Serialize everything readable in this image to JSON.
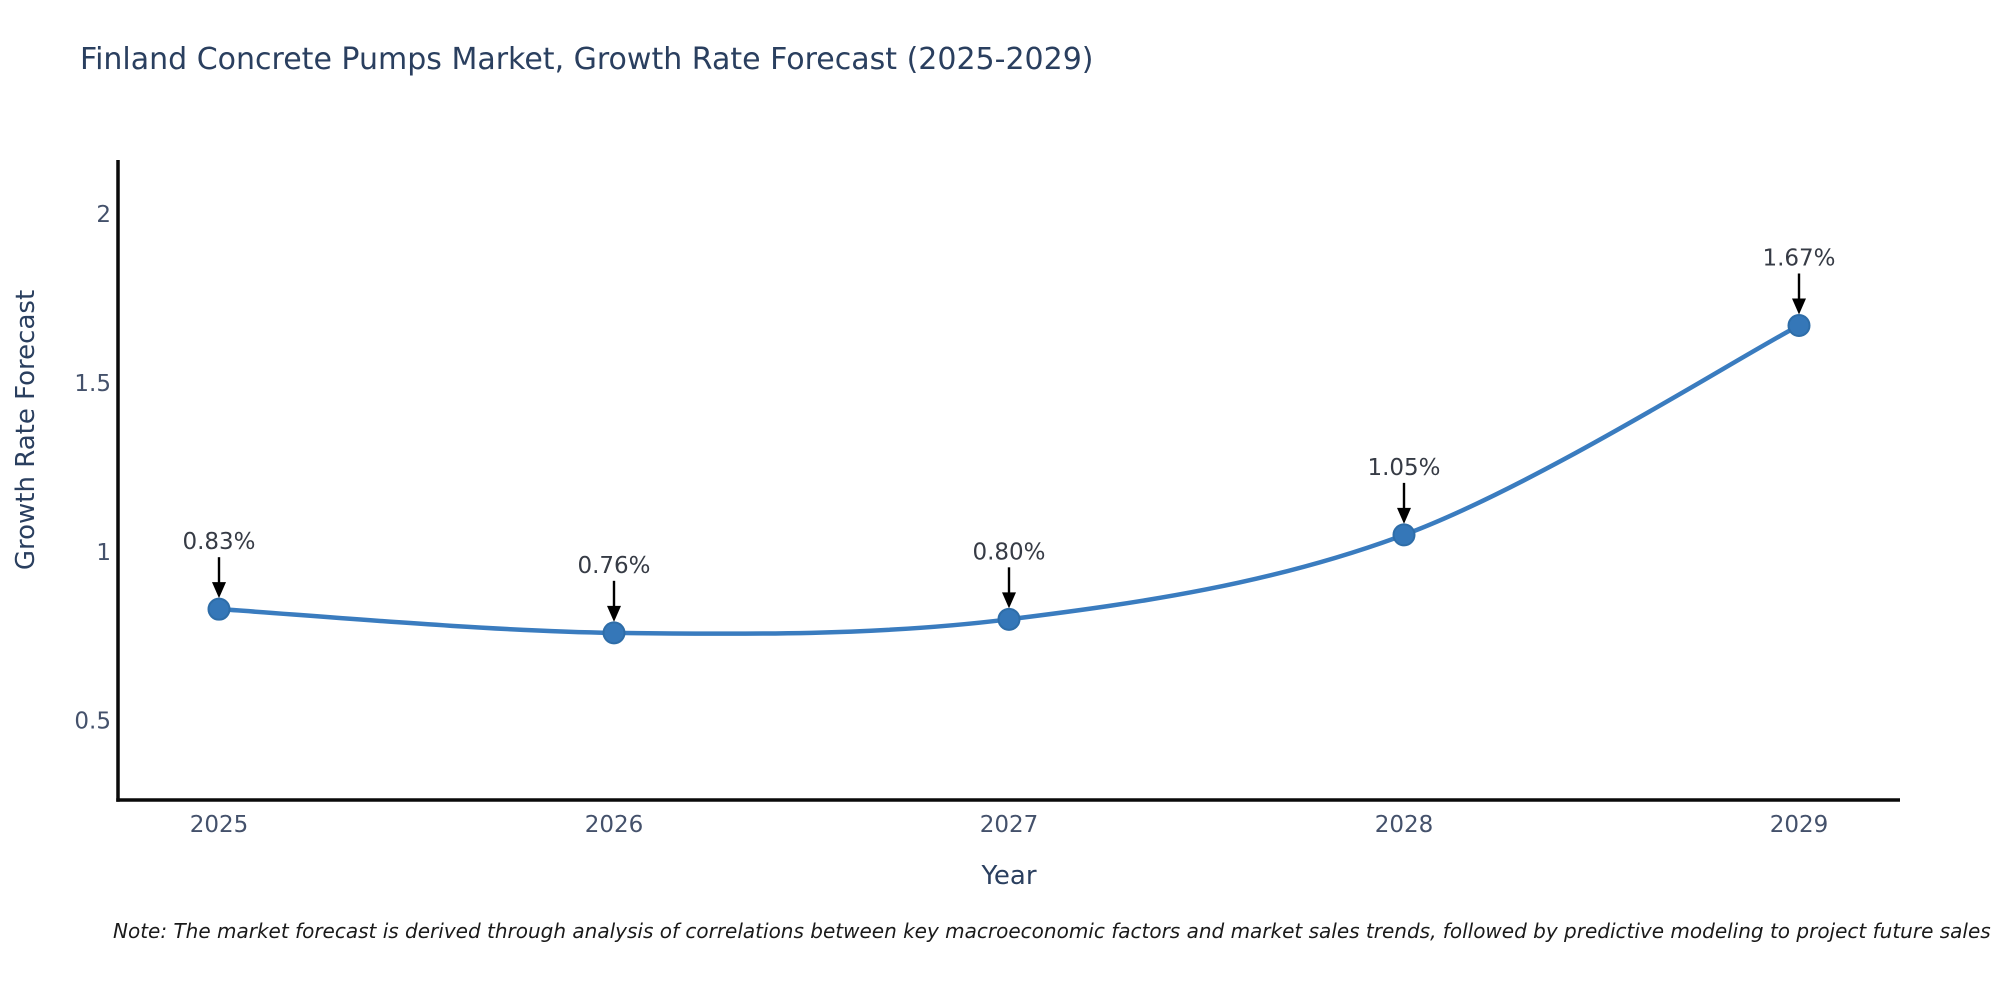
{
  "chart_data": {
    "type": "line",
    "title": "Finland Concrete Pumps Market, Growth Rate Forecast (2025-2029)",
    "xlabel": "Year",
    "ylabel": "Growth Rate Forecast",
    "x": [
      "2025",
      "2026",
      "2027",
      "2028",
      "2029"
    ],
    "series": [
      {
        "name": "Growth Rate Forecast",
        "values": [
          0.83,
          0.76,
          0.8,
          1.05,
          1.67
        ],
        "point_labels": [
          "0.83%",
          "0.76%",
          "0.80%",
          "1.05%",
          "1.67%"
        ]
      }
    ],
    "yticks": [
      0.5,
      1,
      1.5,
      2
    ],
    "ytick_labels": [
      "0.5",
      "1",
      "1.5",
      "2"
    ],
    "ylim": [
      0.265,
      2.16
    ],
    "grid": false,
    "legend": "none",
    "line_shape": "spline",
    "annotations_have_arrows": true,
    "colors": {
      "line": "#3a7cbf",
      "marker_fill": "#3577b8",
      "marker_edge": "#2e6da8",
      "arrow": "#000000",
      "axis": "#0a0a0a",
      "title_text": "#2a3f5f",
      "axis_label_text": "#2a3f5f",
      "tick_text": "#44516b",
      "annotation_text": "#363b45"
    }
  },
  "note": {
    "text": "Note: The market forecast is derived through analysis of correlations between key macroeconomic factors and market sales trends, followed by predictive modeling to project future sales"
  }
}
